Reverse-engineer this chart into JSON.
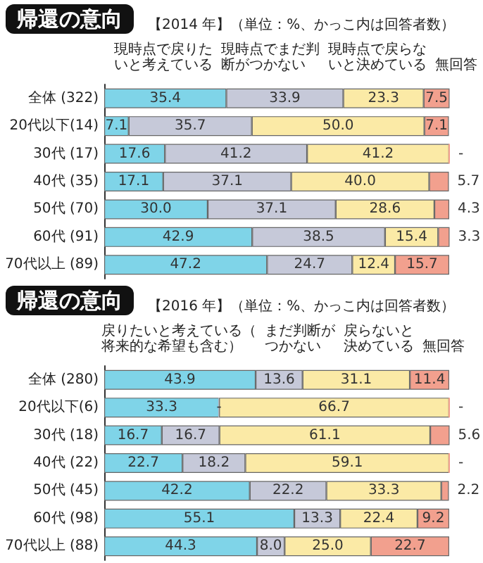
{
  "chart_data": [
    {
      "type": "bar",
      "title": "帰還の意向",
      "subtitle": "【2014 年】（単位：%、かっこ内は回答者数）",
      "orientation": "horizontal",
      "stacked": true,
      "xlim": [
        0,
        100
      ],
      "tick_labels": "y",
      "categories": [
        "全体 (322)",
        "20代以下(14)",
        "30代 (17)",
        "40代 (35)",
        "50代 (70)",
        "60代 (91)",
        "70代以上 (89)"
      ],
      "series": [
        {
          "name": "現時点で戻りたいと考えている",
          "color": "#7fd4e8",
          "values": [
            35.4,
            7.1,
            17.6,
            17.1,
            30.0,
            42.9,
            47.2
          ],
          "value_labels": [
            "35.4",
            "7.1",
            "17.6",
            "17.1",
            "30.0",
            "42.9",
            "47.2"
          ]
        },
        {
          "name": "現時点でまだ判断がつかない",
          "color": "#c6c9d9",
          "values": [
            33.9,
            35.7,
            41.2,
            37.1,
            37.1,
            38.5,
            24.7
          ],
          "value_labels": [
            "33.9",
            "35.7",
            "41.2",
            "37.1",
            "37.1",
            "38.5",
            "24.7"
          ]
        },
        {
          "name": "現時点で戻らないと決めている",
          "color": "#fbeaa6",
          "values": [
            23.3,
            50.0,
            41.2,
            40.0,
            28.6,
            15.4,
            12.4
          ],
          "value_labels": [
            "23.3",
            "50.0",
            "41.2",
            "40.0",
            "28.6",
            "15.4",
            "12.4"
          ]
        },
        {
          "name": "無回答",
          "color": "#f2a08e",
          "values": [
            7.5,
            7.1,
            0,
            5.7,
            4.3,
            3.3,
            15.7
          ],
          "value_labels": [
            "7.5",
            "7.1",
            "-",
            "5.7",
            "4.3",
            "3.3",
            "15.7"
          ]
        }
      ]
    },
    {
      "type": "bar",
      "title": "帰還の意向",
      "subtitle": "【2016 年】（単位：%、かっこ内は回答者数）",
      "orientation": "horizontal",
      "stacked": true,
      "xlim": [
        0,
        100
      ],
      "tick_labels": "y",
      "categories": [
        "全体 (280)",
        "20代以下(6)",
        "30代 (18)",
        "40代 (22)",
        "50代 (45)",
        "60代 (98)",
        "70代以上 (88)"
      ],
      "series": [
        {
          "name": "戻りたいと考えている（将来的な希望も含む）",
          "color": "#7fd4e8",
          "values": [
            43.9,
            33.3,
            16.7,
            22.7,
            42.2,
            55.1,
            44.3
          ],
          "value_labels": [
            "43.9",
            "33.3",
            "16.7",
            "22.7",
            "42.2",
            "55.1",
            "44.3"
          ]
        },
        {
          "name": "まだ判断がつかない",
          "color": "#c6c9d9",
          "values": [
            13.6,
            0,
            16.7,
            18.2,
            22.2,
            13.3,
            8.0
          ],
          "value_labels": [
            "13.6",
            "-",
            "16.7",
            "18.2",
            "22.2",
            "13.3",
            "8.0"
          ]
        },
        {
          "name": "戻らないと決めている",
          "color": "#fbeaa6",
          "values": [
            31.1,
            66.7,
            61.1,
            59.1,
            33.3,
            22.4,
            25.0
          ],
          "value_labels": [
            "31.1",
            "66.7",
            "61.1",
            "59.1",
            "33.3",
            "22.4",
            "25.0"
          ]
        },
        {
          "name": "無回答",
          "color": "#f2a08e",
          "values": [
            11.4,
            0,
            5.6,
            0,
            2.2,
            9.2,
            22.7
          ],
          "value_labels": [
            "11.4",
            "-",
            "5.6",
            "-",
            "2.2",
            "9.2",
            "22.7"
          ]
        }
      ]
    }
  ]
}
